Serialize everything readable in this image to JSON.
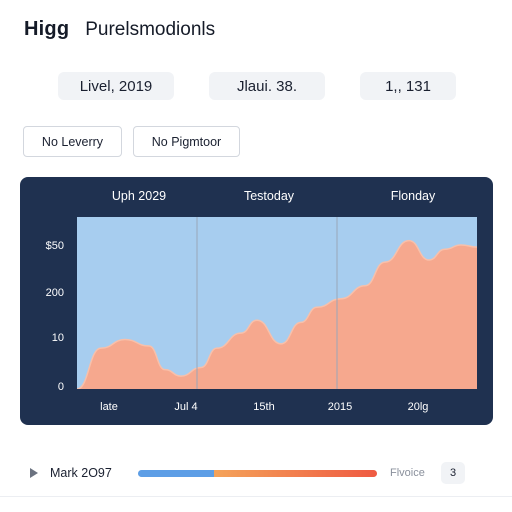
{
  "header": {
    "brand": "Higg",
    "title": "Purelsmodionls"
  },
  "stats": {
    "a": "Livel, 2019",
    "b": "Jlaui. 38.",
    "c": "1,, 131"
  },
  "filters": {
    "a": "No Leverry",
    "b": "No Pigmtoor"
  },
  "chart_data": {
    "type": "area",
    "column_titles": [
      "Uph 2029",
      "Testoday",
      "Flonday"
    ],
    "y_tick_labels": [
      "0",
      "10",
      "200",
      "$50"
    ],
    "x_tick_labels": [
      "late",
      "Jul 4",
      "15th",
      "2015",
      "20lg"
    ],
    "ylim": [
      0,
      4
    ],
    "y_tick_values": [
      0,
      1,
      2,
      3
    ],
    "x": [
      0,
      0.06,
      0.12,
      0.18,
      0.22,
      0.26,
      0.31,
      0.35,
      0.41,
      0.45,
      0.51,
      0.56,
      0.6,
      0.66,
      0.72,
      0.77,
      0.83,
      0.88,
      0.92,
      0.96,
      1
    ],
    "values": [
      0.0,
      0.95,
      1.15,
      1.0,
      0.45,
      0.3,
      0.5,
      0.95,
      1.3,
      1.6,
      1.05,
      1.55,
      1.9,
      2.1,
      2.4,
      2.95,
      3.45,
      3.0,
      3.25,
      3.35,
      3.3
    ],
    "grid": "vertical",
    "colors": {
      "panel": "#1f3150",
      "plot": "#a7cdef",
      "area": "#f6a88e",
      "area_edge": "#f8c0aa",
      "divider": "#9aa6b8"
    }
  },
  "bottom": {
    "label": "Mark 2O97",
    "progress": 0.32,
    "right_label": "Flvoice",
    "chip": "3"
  }
}
